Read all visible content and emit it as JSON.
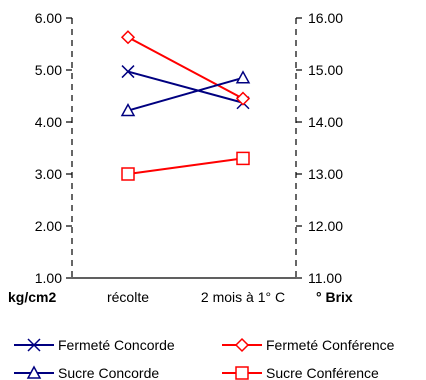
{
  "chart_data": {
    "type": "line",
    "categories": [
      "récolte",
      "2 mois à 1° C"
    ],
    "y_left": {
      "label": "kg/cm2",
      "range": [
        1.0,
        6.0
      ],
      "ticks": [
        "1.00",
        "2.00",
        "3.00",
        "4.00",
        "5.00",
        "6.00"
      ]
    },
    "y_right": {
      "label": "° Brix",
      "range": [
        11.0,
        16.0
      ],
      "ticks": [
        "11.00",
        "12.00",
        "13.00",
        "14.00",
        "15.00",
        "16.00"
      ]
    },
    "grid": false,
    "legend_position": "bottom",
    "series": [
      {
        "name": "Fermeté Concorde",
        "axis": "left",
        "values": [
          4.97,
          4.37
        ],
        "color": "#000080",
        "marker": "x"
      },
      {
        "name": "Fermeté Conférence",
        "axis": "left",
        "values": [
          5.63,
          4.45
        ],
        "color": "#ff0000",
        "marker": "diamond"
      },
      {
        "name": "Sucre Concorde",
        "axis": "right",
        "values": [
          14.22,
          14.85
        ],
        "color": "#000080",
        "marker": "triangle"
      },
      {
        "name": "Sucre Conférence",
        "axis": "right",
        "values": [
          13.0,
          13.3
        ],
        "color": "#ff0000",
        "marker": "square"
      }
    ]
  }
}
